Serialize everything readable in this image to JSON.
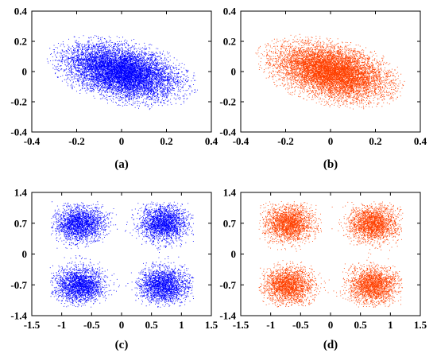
{
  "chart_data": [
    {
      "type": "scatter",
      "panel_label": "(a)",
      "color": "#0000ff",
      "xlim": [
        -0.4,
        0.4
      ],
      "ylim": [
        -0.4,
        0.4
      ],
      "xticks": [
        -0.4,
        -0.2,
        0,
        0.2,
        0.4
      ],
      "yticks": [
        -0.4,
        -0.2,
        0,
        0.2,
        0.4
      ],
      "xtick_labels": [
        "-0.4",
        "-0.2",
        "0",
        "0.2",
        "0.4"
      ],
      "ytick_labels": [
        "-0.4",
        "-0.2",
        "0",
        "0.2",
        "0.4"
      ],
      "grid": false,
      "distribution": {
        "shape": "tilted elliptical cloud",
        "center": [
          0,
          0
        ],
        "x_extent": [
          -0.33,
          0.33
        ],
        "y_extent": [
          -0.36,
          0.31
        ],
        "tilt": "negative correlation"
      }
    },
    {
      "type": "scatter",
      "panel_label": "(b)",
      "color": "#ff4000",
      "xlim": [
        -0.4,
        0.4
      ],
      "ylim": [
        -0.4,
        0.4
      ],
      "xticks": [
        -0.4,
        -0.2,
        0,
        0.2,
        0.4
      ],
      "yticks": [
        -0.4,
        -0.2,
        0,
        0.2,
        0.4
      ],
      "xtick_labels": [
        "-0.4",
        "-0.2",
        "0",
        "0.2",
        "0.4"
      ],
      "ytick_labels": [
        "-0.4",
        "-0.2",
        "0",
        "0.2",
        "0.4"
      ],
      "grid": false,
      "distribution": {
        "shape": "tilted elliptical cloud",
        "center": [
          0,
          0
        ],
        "x_extent": [
          -0.33,
          0.33
        ],
        "y_extent": [
          -0.36,
          0.31
        ],
        "tilt": "negative correlation"
      }
    },
    {
      "type": "scatter",
      "panel_label": "(c)",
      "color": "#0000ff",
      "xlim": [
        -1.5,
        1.5
      ],
      "ylim": [
        -1.4,
        1.4
      ],
      "xticks": [
        -1.5,
        -1,
        -0.5,
        0,
        0.5,
        1,
        1.5
      ],
      "yticks": [
        -1.4,
        -0.7,
        0,
        0.7,
        1.4
      ],
      "xtick_labels": [
        "-1.5",
        "-1",
        "-0.5",
        "0",
        "0.5",
        "1",
        "1.5"
      ],
      "ytick_labels": [
        "-1.4",
        "-0.7",
        "0",
        "0.7",
        "1.4"
      ],
      "grid": false,
      "distribution": {
        "shape": "four-cluster constellation with diamond-shaped hole at center",
        "cluster_centers": [
          [
            -0.7,
            0.7
          ],
          [
            0.7,
            0.7
          ],
          [
            -0.7,
            -0.7
          ],
          [
            0.7,
            -0.7
          ]
        ],
        "x_extent": [
          -1.15,
          1.15
        ],
        "y_extent": [
          -1.15,
          1.15
        ]
      }
    },
    {
      "type": "scatter",
      "panel_label": "(d)",
      "color": "#ff4000",
      "xlim": [
        -1.5,
        1.5
      ],
      "ylim": [
        -1.4,
        1.4
      ],
      "xticks": [
        -1.5,
        -1,
        -0.5,
        0,
        0.5,
        1,
        1.5
      ],
      "yticks": [
        -1.4,
        -0.7,
        0,
        0.7,
        1.4
      ],
      "xtick_labels": [
        "-1.5",
        "-1",
        "-0.5",
        "0",
        "0.5",
        "1",
        "1.5"
      ],
      "ytick_labels": [
        "-1.4",
        "-0.7",
        "0",
        "0.7",
        "1.4"
      ],
      "grid": false,
      "distribution": {
        "shape": "four-cluster constellation with diamond-shaped hole at center",
        "cluster_centers": [
          [
            -0.7,
            0.7
          ],
          [
            0.7,
            0.7
          ],
          [
            -0.7,
            -0.7
          ],
          [
            0.7,
            -0.7
          ]
        ],
        "x_extent": [
          -1.15,
          1.15
        ],
        "y_extent": [
          -1.15,
          1.15
        ]
      }
    }
  ]
}
